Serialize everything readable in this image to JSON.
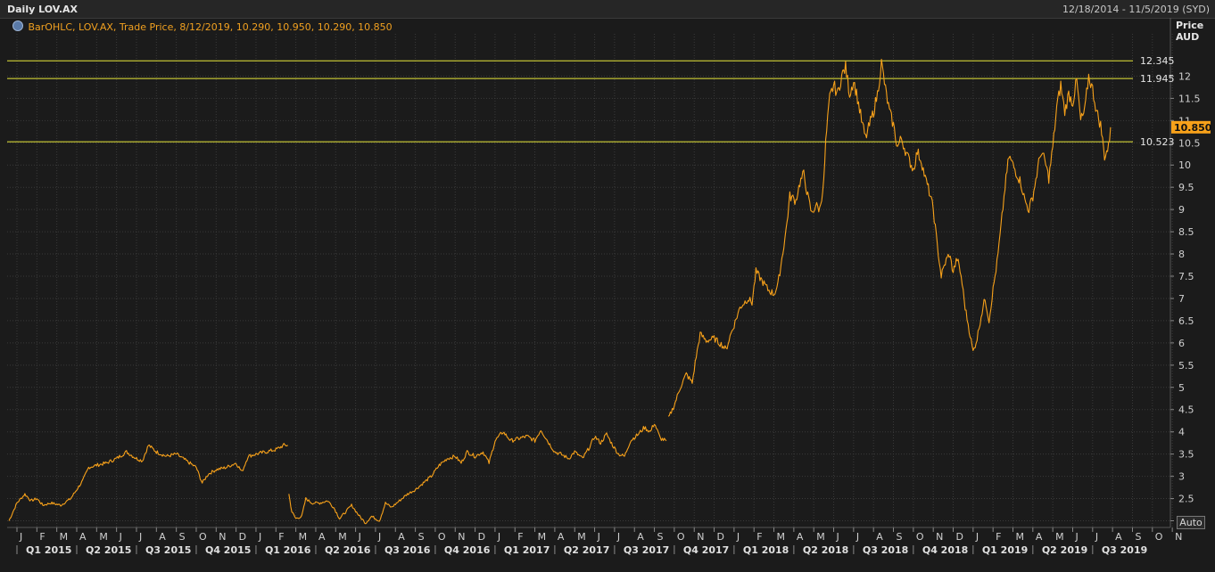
{
  "window": {
    "title": "Daily LOV.AX",
    "date_range": "12/18/2014 - 11/5/2019 (SYD)"
  },
  "legend": {
    "icon": "gear-icon",
    "text": "BarOHLC, LOV.AX, Trade Price, 8/12/2019, 10.290, 10.950, 10.290, 10.850"
  },
  "price_axis": {
    "line1": "Price",
    "line2": "AUD"
  },
  "auto_label": "Auto",
  "colors": {
    "series": "#f7a11a",
    "hlines": "#e8e83a",
    "grid": "#3a3a3a",
    "background": "#1b1b1b"
  },
  "chart_data": {
    "type": "line",
    "series_name": "LOV.AX",
    "x_unit": "month",
    "y_unit": "AUD",
    "ylim": [
      1.85,
      12.95
    ],
    "xlim": [
      "2014-12-18",
      "2019-11-05"
    ],
    "y_ticks": [
      "2",
      "2.5",
      "3",
      "3.5",
      "4",
      "4.5",
      "5",
      "5.5",
      "6",
      "6.5",
      "7",
      "7.5",
      "8",
      "8.5",
      "9",
      "9.5",
      "10",
      "10.5",
      "11",
      "11.5",
      "12"
    ],
    "month_ticks": [
      "J",
      "F",
      "M",
      "A",
      "M",
      "J",
      "J",
      "A",
      "S",
      "O",
      "N",
      "D",
      "J",
      "F",
      "M",
      "A",
      "M",
      "J",
      "J",
      "A",
      "S",
      "O",
      "N",
      "D",
      "J",
      "F",
      "M",
      "A",
      "M",
      "J",
      "J",
      "A",
      "S",
      "O",
      "N",
      "D",
      "J",
      "F",
      "M",
      "A",
      "M",
      "J",
      "J",
      "A",
      "S",
      "O",
      "N",
      "D",
      "J",
      "F",
      "M",
      "A",
      "M",
      "J",
      "J",
      "A",
      "S",
      "O",
      "N"
    ],
    "quarter_labels": [
      "Q1 2015",
      "Q2 2015",
      "Q3 2015",
      "Q4 2015",
      "Q1 2016",
      "Q2 2016",
      "Q3 2016",
      "Q4 2016",
      "Q1 2017",
      "Q2 2017",
      "Q3 2017",
      "Q4 2017",
      "Q1 2018",
      "Q2 2018",
      "Q3 2018",
      "Q4 2018",
      "Q1 2019",
      "Q2 2019",
      "Q3 2019"
    ],
    "horizontal_lines": [
      {
        "value": 12.345,
        "label": "12.345"
      },
      {
        "value": 11.945,
        "label": "11.945"
      },
      {
        "value": 10.523,
        "label": "10.523"
      }
    ],
    "last_price": {
      "value": 10.85,
      "label": "10.850"
    },
    "grid": true,
    "segments": [
      [
        [
          -0.4,
          2.0
        ],
        [
          0.0,
          2.4
        ],
        [
          0.4,
          2.6
        ],
        [
          0.7,
          2.45
        ],
        [
          1.0,
          2.5
        ],
        [
          1.3,
          2.35
        ],
        [
          1.7,
          2.4
        ],
        [
          2.2,
          2.35
        ],
        [
          2.7,
          2.5
        ],
        [
          3.0,
          2.7
        ],
        [
          3.3,
          2.9
        ],
        [
          3.6,
          3.2
        ],
        [
          4.0,
          3.25
        ],
        [
          4.5,
          3.3
        ],
        [
          5.0,
          3.4
        ],
        [
          5.5,
          3.55
        ],
        [
          6.0,
          3.4
        ],
        [
          6.3,
          3.35
        ],
        [
          6.6,
          3.7
        ],
        [
          7.0,
          3.55
        ],
        [
          7.5,
          3.45
        ],
        [
          8.0,
          3.5
        ],
        [
          8.5,
          3.35
        ],
        [
          9.0,
          3.2
        ],
        [
          9.3,
          2.85
        ],
        [
          9.6,
          3.05
        ],
        [
          10.0,
          3.15
        ],
        [
          10.5,
          3.2
        ],
        [
          11.0,
          3.3
        ],
        [
          11.3,
          3.1
        ],
        [
          11.6,
          3.45
        ],
        [
          12.0,
          3.5
        ],
        [
          12.5,
          3.55
        ],
        [
          13.0,
          3.6
        ],
        [
          13.4,
          3.7
        ],
        [
          13.6,
          3.7
        ]
      ],
      [
        [
          13.65,
          2.6
        ],
        [
          13.8,
          2.2
        ],
        [
          14.0,
          2.05
        ],
        [
          14.3,
          2.1
        ],
        [
          14.5,
          2.5
        ],
        [
          14.8,
          2.4
        ],
        [
          15.2,
          2.4
        ],
        [
          15.6,
          2.45
        ],
        [
          15.9,
          2.3
        ],
        [
          16.2,
          2.05
        ],
        [
          16.5,
          2.2
        ],
        [
          16.8,
          2.35
        ],
        [
          17.2,
          2.1
        ],
        [
          17.5,
          1.95
        ],
        [
          17.8,
          2.1
        ],
        [
          18.2,
          2.0
        ],
        [
          18.5,
          2.4
        ],
        [
          18.8,
          2.3
        ],
        [
          19.2,
          2.45
        ],
        [
          19.6,
          2.6
        ],
        [
          20.0,
          2.7
        ],
        [
          20.4,
          2.85
        ],
        [
          20.8,
          3.0
        ],
        [
          21.2,
          3.25
        ],
        [
          21.6,
          3.4
        ],
        [
          22.0,
          3.45
        ],
        [
          22.3,
          3.3
        ],
        [
          22.6,
          3.55
        ],
        [
          23.0,
          3.45
        ],
        [
          23.4,
          3.55
        ],
        [
          23.7,
          3.3
        ],
        [
          24.0,
          3.8
        ],
        [
          24.4,
          4.0
        ],
        [
          24.8,
          3.8
        ],
        [
          25.2,
          3.85
        ],
        [
          25.6,
          3.9
        ],
        [
          26.0,
          3.8
        ],
        [
          26.3,
          4.05
        ],
        [
          26.7,
          3.75
        ],
        [
          27.0,
          3.55
        ],
        [
          27.3,
          3.5
        ],
        [
          27.7,
          3.4
        ],
        [
          28.0,
          3.55
        ],
        [
          28.4,
          3.4
        ],
        [
          28.8,
          3.7
        ],
        [
          29.0,
          3.9
        ],
        [
          29.3,
          3.75
        ],
        [
          29.6,
          3.95
        ],
        [
          29.9,
          3.7
        ],
        [
          30.2,
          3.5
        ],
        [
          30.5,
          3.45
        ],
        [
          30.8,
          3.8
        ],
        [
          31.2,
          3.95
        ],
        [
          31.5,
          4.1
        ],
        [
          31.8,
          4.0
        ],
        [
          32.0,
          4.2
        ],
        [
          32.3,
          3.85
        ],
        [
          32.6,
          3.8
        ]
      ],
      [
        [
          32.7,
          4.3
        ],
        [
          33.0,
          4.6
        ],
        [
          33.3,
          5.0
        ],
        [
          33.6,
          5.3
        ],
        [
          33.9,
          5.1
        ],
        [
          34.1,
          5.7
        ],
        [
          34.3,
          6.2
        ],
        [
          34.6,
          6.05
        ],
        [
          35.0,
          6.1
        ],
        [
          35.4,
          5.95
        ],
        [
          35.6,
          5.85
        ],
        [
          35.8,
          6.15
        ],
        [
          36.0,
          6.4
        ],
        [
          36.3,
          6.8
        ],
        [
          36.5,
          6.9
        ],
        [
          36.7,
          7.0
        ],
        [
          36.9,
          6.9
        ],
        [
          37.1,
          7.6
        ],
        [
          37.4,
          7.4
        ],
        [
          37.7,
          7.2
        ],
        [
          38.0,
          7.1
        ],
        [
          38.2,
          7.3
        ],
        [
          38.4,
          7.9
        ],
        [
          38.6,
          8.5
        ],
        [
          38.8,
          9.3
        ],
        [
          39.1,
          9.2
        ],
        [
          39.3,
          9.6
        ],
        [
          39.5,
          9.8
        ],
        [
          39.7,
          9.3
        ],
        [
          39.9,
          8.9
        ],
        [
          40.1,
          9.1
        ],
        [
          40.3,
          9.0
        ],
        [
          40.5,
          9.6
        ],
        [
          40.6,
          10.5
        ],
        [
          40.8,
          11.5
        ],
        [
          41.0,
          11.8
        ],
        [
          41.2,
          11.6
        ],
        [
          41.4,
          12.0
        ],
        [
          41.6,
          12.2
        ],
        [
          41.8,
          11.6
        ],
        [
          42.0,
          11.9
        ],
        [
          42.2,
          11.5
        ],
        [
          42.4,
          11.0
        ],
        [
          42.6,
          10.6
        ],
        [
          42.8,
          10.9
        ],
        [
          43.0,
          11.2
        ],
        [
          43.2,
          11.6
        ],
        [
          43.4,
          12.3
        ],
        [
          43.6,
          11.7
        ],
        [
          43.8,
          11.2
        ],
        [
          44.0,
          10.9
        ],
        [
          44.2,
          10.4
        ],
        [
          44.4,
          10.6
        ],
        [
          44.7,
          10.2
        ],
        [
          45.0,
          9.9
        ],
        [
          45.2,
          10.3
        ],
        [
          45.4,
          10.1
        ],
        [
          45.6,
          9.7
        ],
        [
          45.8,
          9.4
        ],
        [
          46.0,
          9.0
        ],
        [
          46.2,
          8.2
        ],
        [
          46.4,
          7.5
        ],
        [
          46.6,
          7.8
        ],
        [
          46.8,
          8.0
        ],
        [
          47.0,
          7.6
        ],
        [
          47.2,
          7.9
        ],
        [
          47.4,
          7.5
        ],
        [
          47.6,
          6.8
        ],
        [
          47.8,
          6.3
        ],
        [
          48.0,
          5.8
        ],
        [
          48.2,
          6.1
        ],
        [
          48.4,
          6.6
        ],
        [
          48.6,
          7.0
        ],
        [
          48.8,
          6.5
        ],
        [
          49.0,
          7.2
        ],
        [
          49.2,
          7.8
        ],
        [
          49.4,
          8.6
        ],
        [
          49.6,
          9.5
        ],
        [
          49.8,
          10.2
        ],
        [
          50.0,
          10.0
        ],
        [
          50.2,
          9.8
        ],
        [
          50.4,
          9.6
        ],
        [
          50.6,
          9.2
        ],
        [
          50.8,
          9.0
        ],
        [
          51.0,
          9.3
        ],
        [
          51.2,
          9.8
        ],
        [
          51.4,
          10.3
        ],
        [
          51.6,
          10.1
        ],
        [
          51.8,
          9.7
        ],
        [
          52.0,
          10.4
        ],
        [
          52.2,
          11.3
        ],
        [
          52.4,
          11.8
        ],
        [
          52.6,
          11.2
        ],
        [
          52.8,
          11.6
        ],
        [
          53.0,
          11.4
        ],
        [
          53.2,
          11.9
        ],
        [
          53.4,
          11.0
        ],
        [
          53.6,
          11.2
        ],
        [
          53.8,
          12.0
        ],
        [
          54.0,
          11.7
        ],
        [
          54.2,
          11.2
        ],
        [
          54.4,
          10.9
        ],
        [
          54.6,
          10.2
        ],
        [
          54.8,
          10.4
        ],
        [
          54.9,
          10.85
        ]
      ]
    ]
  }
}
